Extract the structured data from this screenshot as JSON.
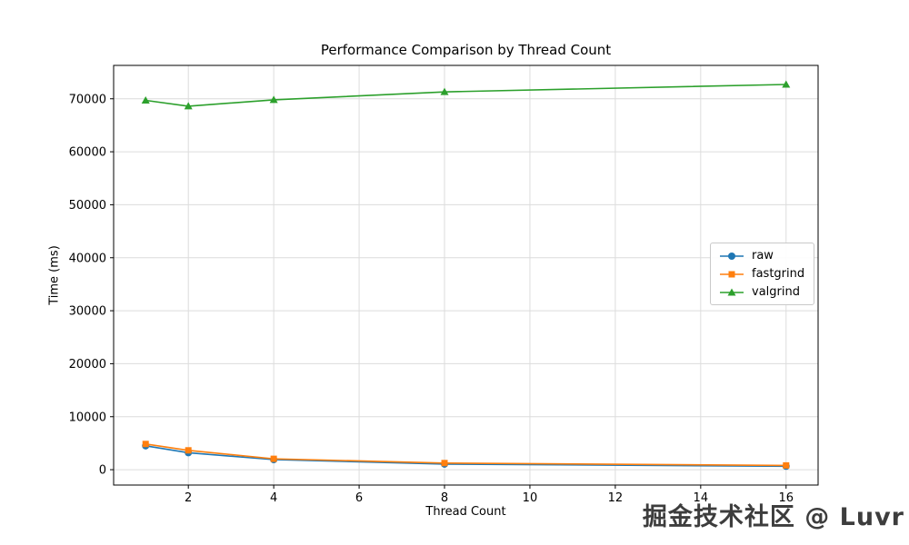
{
  "chart_data": {
    "type": "line",
    "title": "Performance Comparison by Thread Count",
    "xlabel": "Thread Count",
    "ylabel": "Time (ms)",
    "x": [
      1,
      2,
      4,
      8,
      16
    ],
    "series": [
      {
        "name": "raw",
        "color": "#1f77b4",
        "marker": "circle",
        "values": [
          4500,
          3200,
          1900,
          1050,
          650
        ]
      },
      {
        "name": "fastgrind",
        "color": "#ff7f0e",
        "marker": "square",
        "values": [
          4850,
          3650,
          2050,
          1250,
          800
        ]
      },
      {
        "name": "valgrind",
        "color": "#2ca02c",
        "marker": "triangle",
        "values": [
          69700,
          68600,
          69800,
          71300,
          72700
        ]
      }
    ],
    "xticks": [
      2,
      4,
      6,
      8,
      10,
      12,
      14,
      16
    ],
    "yticks": [
      0,
      10000,
      20000,
      30000,
      40000,
      50000,
      60000,
      70000
    ],
    "xlim": [
      0.25,
      16.75
    ],
    "ylim": [
      -2900,
      76300
    ],
    "grid": true,
    "grid_color": "#dcdcdc",
    "legend_position": "center right"
  },
  "watermark": {
    "text": "掘金技术社区 @ Luvr"
  }
}
